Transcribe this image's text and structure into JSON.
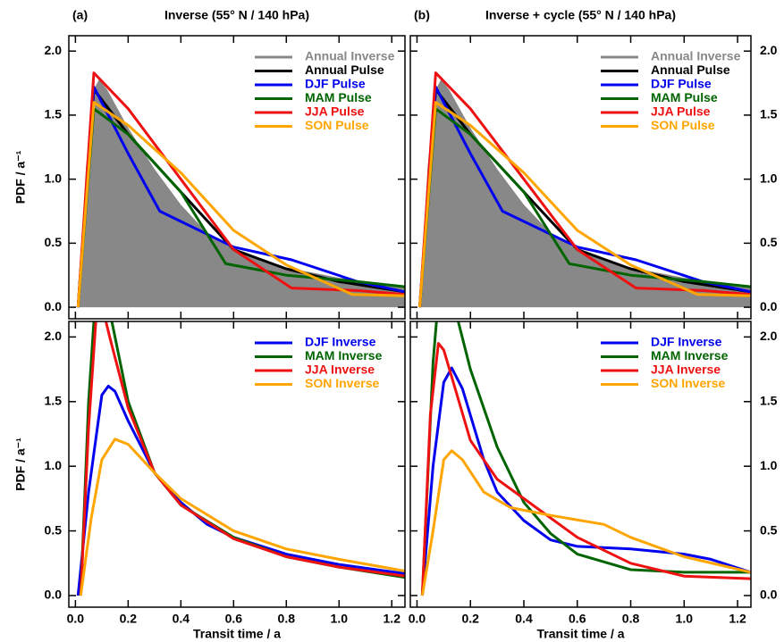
{
  "chart_data": [
    {
      "type": "line",
      "panel": "(a)",
      "title": "Inverse (55° N / 140 hPa)",
      "ylabel": "PDF / a⁻¹",
      "ytick_side": "left",
      "legend": "upper right",
      "xlim": [
        -0.025,
        1.25
      ],
      "ylim": [
        -0.09,
        2.12
      ],
      "xticks": [
        {
          "value": 0,
          "label": "0.0"
        },
        0.2,
        0.4,
        0.6,
        0.8,
        {
          "value": 1,
          "label": "1.0"
        },
        1.2
      ],
      "yticks": [
        {
          "value": 0,
          "label": "0.0"
        },
        0.5,
        {
          "value": 1,
          "label": "1.0"
        },
        1.5,
        {
          "value": 2,
          "label": "2.0"
        }
      ],
      "series": [
        {
          "name": "Annual Inverse",
          "color": "#888888",
          "fill": true,
          "x": [
            0.01,
            0.04,
            0.07,
            0.09,
            0.12,
            0.2,
            0.3,
            0.4,
            0.5,
            0.6,
            0.7,
            0.8,
            0.9,
            1.0,
            1.1,
            1.25
          ],
          "values": [
            0,
            1.1,
            1.7,
            1.78,
            1.7,
            1.4,
            1.08,
            0.8,
            0.58,
            0.45,
            0.37,
            0.31,
            0.27,
            0.23,
            0.2,
            0.16
          ]
        },
        {
          "name": "Annual Pulse",
          "color": "#000000",
          "x": [
            0.01,
            0.07,
            0.2,
            0.4,
            0.6,
            0.8,
            1.0,
            1.25
          ],
          "values": [
            0,
            1.7,
            1.35,
            0.9,
            0.45,
            0.3,
            0.2,
            0.12
          ]
        },
        {
          "name": "DJF Pulse",
          "color": "#0000ee",
          "x": [
            0.01,
            0.07,
            0.2,
            0.32,
            0.6,
            0.82,
            1.07,
            1.25
          ],
          "values": [
            0,
            1.72,
            1.2,
            0.75,
            0.47,
            0.37,
            0.2,
            0.12
          ]
        },
        {
          "name": "MAM Pulse",
          "color": "#006400",
          "x": [
            0.01,
            0.07,
            0.2,
            0.4,
            0.57,
            0.8,
            1.07,
            1.25
          ],
          "values": [
            0,
            1.55,
            1.35,
            0.9,
            0.34,
            0.25,
            0.2,
            0.16
          ]
        },
        {
          "name": "JJA Pulse",
          "color": "#ee1111",
          "x": [
            0.01,
            0.07,
            0.2,
            0.4,
            0.6,
            0.82,
            1.07,
            1.25
          ],
          "values": [
            0,
            1.83,
            1.55,
            1.0,
            0.45,
            0.15,
            0.13,
            0.1
          ]
        },
        {
          "name": "SON Pulse",
          "color": "#ffa500",
          "x": [
            0.01,
            0.07,
            0.2,
            0.4,
            0.6,
            0.8,
            1.05,
            1.25
          ],
          "values": [
            0,
            1.6,
            1.42,
            1.05,
            0.6,
            0.33,
            0.1,
            0.09
          ]
        }
      ]
    },
    {
      "type": "line",
      "panel": "(b)",
      "title": "Inverse + cycle (55° N / 140 hPa)",
      "ytick_side": "right",
      "legend": "upper right",
      "xlim": [
        -0.025,
        1.25
      ],
      "ylim": [
        -0.09,
        2.12
      ],
      "xticks": [
        {
          "value": 0,
          "label": "0.0"
        },
        0.2,
        0.4,
        0.6,
        0.8,
        {
          "value": 1,
          "label": "1.0"
        },
        1.2
      ],
      "yticks": [
        {
          "value": 0,
          "label": "0.0"
        },
        0.5,
        {
          "value": 1,
          "label": "1.0"
        },
        1.5,
        {
          "value": 2,
          "label": "2.0"
        }
      ],
      "series": [
        {
          "name": "Annual Inverse",
          "color": "#888888",
          "fill": true,
          "x": [
            0.01,
            0.04,
            0.07,
            0.09,
            0.12,
            0.2,
            0.3,
            0.4,
            0.5,
            0.6,
            0.7,
            0.8,
            0.9,
            1.0,
            1.1,
            1.25
          ],
          "values": [
            0,
            1.1,
            1.7,
            1.78,
            1.7,
            1.4,
            1.08,
            0.8,
            0.58,
            0.45,
            0.37,
            0.31,
            0.27,
            0.23,
            0.2,
            0.16
          ]
        },
        {
          "name": "Annual Pulse",
          "color": "#000000",
          "x": [
            0.01,
            0.07,
            0.2,
            0.4,
            0.6,
            0.8,
            1.0,
            1.25
          ],
          "values": [
            0,
            1.7,
            1.35,
            0.9,
            0.45,
            0.3,
            0.2,
            0.12
          ]
        },
        {
          "name": "DJF Pulse",
          "color": "#0000ee",
          "x": [
            0.01,
            0.07,
            0.2,
            0.32,
            0.6,
            0.82,
            1.07,
            1.25
          ],
          "values": [
            0,
            1.72,
            1.2,
            0.75,
            0.47,
            0.37,
            0.2,
            0.12
          ]
        },
        {
          "name": "MAM Pulse",
          "color": "#006400",
          "x": [
            0.01,
            0.07,
            0.2,
            0.4,
            0.57,
            0.8,
            1.07,
            1.25
          ],
          "values": [
            0,
            1.55,
            1.35,
            0.9,
            0.34,
            0.25,
            0.2,
            0.16
          ]
        },
        {
          "name": "JJA Pulse",
          "color": "#ee1111",
          "x": [
            0.01,
            0.07,
            0.2,
            0.4,
            0.6,
            0.82,
            1.07,
            1.25
          ],
          "values": [
            0,
            1.83,
            1.55,
            1.0,
            0.45,
            0.15,
            0.13,
            0.1
          ]
        },
        {
          "name": "SON Pulse",
          "color": "#ffa500",
          "x": [
            0.01,
            0.07,
            0.2,
            0.4,
            0.6,
            0.8,
            1.05,
            1.25
          ],
          "values": [
            0,
            1.6,
            1.42,
            1.05,
            0.6,
            0.33,
            0.1,
            0.09
          ]
        }
      ]
    },
    {
      "type": "line",
      "ylabel": "PDF / a⁻¹",
      "xlabel": "Transit time / a",
      "ytick_side": "left",
      "legend": "upper right",
      "xlim": [
        -0.025,
        1.25
      ],
      "ylim": [
        -0.09,
        2.12
      ],
      "xticks": [
        {
          "value": 0,
          "label": "0.0"
        },
        0.2,
        0.4,
        0.6,
        0.8,
        {
          "value": 1,
          "label": "1.0"
        },
        1.2
      ],
      "yticks": [
        {
          "value": 0,
          "label": "0.0"
        },
        0.5,
        {
          "value": 1,
          "label": "1.0"
        },
        1.5,
        {
          "value": 2,
          "label": "2.0"
        }
      ],
      "series": [
        {
          "name": "DJF Inverse",
          "color": "#0000ee",
          "x": [
            0.01,
            0.05,
            0.1,
            0.125,
            0.15,
            0.2,
            0.3,
            0.4,
            0.5,
            0.6,
            0.8,
            1.0,
            1.25
          ],
          "values": [
            0,
            0.8,
            1.55,
            1.62,
            1.58,
            1.35,
            0.95,
            0.72,
            0.55,
            0.45,
            0.32,
            0.24,
            0.17
          ]
        },
        {
          "name": "MAM Inverse",
          "color": "#006400",
          "x": [
            0.02,
            0.05,
            0.07,
            0.09,
            0.12,
            0.16,
            0.2,
            0.3,
            0.4,
            0.6,
            0.8,
            1.0,
            1.25
          ],
          "values": [
            0,
            1.5,
            2.12,
            2.4,
            2.3,
            1.9,
            1.5,
            0.95,
            0.7,
            0.45,
            0.3,
            0.22,
            0.14
          ]
        },
        {
          "name": "JJA Inverse",
          "color": "#ee1111",
          "x": [
            0.02,
            0.05,
            0.08,
            0.1,
            0.13,
            0.2,
            0.3,
            0.4,
            0.6,
            0.8,
            1.0,
            1.25
          ],
          "values": [
            0,
            1.3,
            2.2,
            2.25,
            2.0,
            1.45,
            0.95,
            0.7,
            0.44,
            0.3,
            0.22,
            0.15
          ]
        },
        {
          "name": "SON Inverse",
          "color": "#ffa500",
          "x": [
            0.02,
            0.06,
            0.1,
            0.15,
            0.2,
            0.3,
            0.4,
            0.6,
            0.8,
            1.0,
            1.25
          ],
          "values": [
            0,
            0.6,
            1.05,
            1.21,
            1.17,
            0.95,
            0.75,
            0.5,
            0.36,
            0.28,
            0.19
          ]
        }
      ]
    },
    {
      "type": "line",
      "xlabel": "Transit time / a",
      "ytick_side": "right",
      "legend": "upper right",
      "xlim": [
        -0.025,
        1.25
      ],
      "ylim": [
        -0.09,
        2.12
      ],
      "xticks": [
        {
          "value": 0,
          "label": "0.0"
        },
        0.2,
        0.4,
        0.6,
        0.8,
        {
          "value": 1,
          "label": "1.0"
        },
        1.2
      ],
      "yticks": [
        {
          "value": 0,
          "label": "0.0"
        },
        0.5,
        {
          "value": 1,
          "label": "1.0"
        },
        1.5,
        {
          "value": 2,
          "label": "2.0"
        }
      ],
      "series": [
        {
          "name": "DJF Inverse",
          "color": "#0000ee",
          "x": [
            0.02,
            0.06,
            0.1,
            0.13,
            0.17,
            0.25,
            0.3,
            0.4,
            0.5,
            0.6,
            0.8,
            1.0,
            1.1,
            1.25
          ],
          "values": [
            0,
            1.0,
            1.65,
            1.76,
            1.6,
            1.05,
            0.8,
            0.58,
            0.43,
            0.38,
            0.36,
            0.32,
            0.28,
            0.18
          ]
        },
        {
          "name": "MAM Inverse",
          "color": "#006400",
          "x": [
            0.02,
            0.06,
            0.08,
            0.12,
            0.2,
            0.3,
            0.4,
            0.5,
            0.6,
            0.8,
            1.0,
            1.25
          ],
          "values": [
            0,
            1.8,
            2.3,
            2.4,
            1.75,
            1.15,
            0.72,
            0.48,
            0.32,
            0.2,
            0.18,
            0.18
          ]
        },
        {
          "name": "JJA Inverse",
          "color": "#ee1111",
          "x": [
            0.02,
            0.05,
            0.08,
            0.1,
            0.15,
            0.2,
            0.3,
            0.4,
            0.6,
            0.8,
            1.0,
            1.25
          ],
          "values": [
            0,
            1.4,
            1.95,
            1.9,
            1.55,
            1.2,
            0.9,
            0.75,
            0.45,
            0.25,
            0.15,
            0.13
          ]
        },
        {
          "name": "SON Inverse",
          "color": "#ffa500",
          "x": [
            0.02,
            0.06,
            0.1,
            0.13,
            0.17,
            0.25,
            0.35,
            0.5,
            0.7,
            0.8,
            1.0,
            1.25
          ],
          "values": [
            0,
            0.5,
            1.05,
            1.12,
            1.05,
            0.8,
            0.68,
            0.62,
            0.55,
            0.45,
            0.3,
            0.18
          ]
        }
      ]
    }
  ]
}
